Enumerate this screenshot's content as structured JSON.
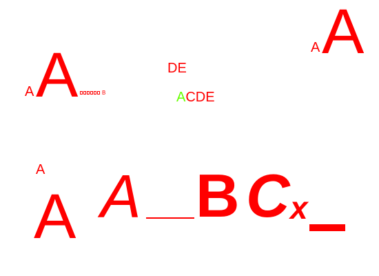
{
  "top_left_group": {
    "small_a": "A",
    "big_a": "A",
    "trailing_b": "B"
  },
  "center_group": {
    "line1": "DE",
    "green_a": "A",
    "line2_rest": "CDE"
  },
  "top_right_group": {
    "small_a": "A",
    "big_a": "A"
  },
  "bottom_left_group": {
    "small_a": "A",
    "big_a": "A"
  },
  "bottom_group": {
    "italic_a": "A",
    "bold_b": "B",
    "bold_italic_c": "C",
    "italic_x": "x"
  },
  "colors": {
    "primary": "#ff0000",
    "accent": "#66ff00",
    "background": "#ffffff"
  }
}
